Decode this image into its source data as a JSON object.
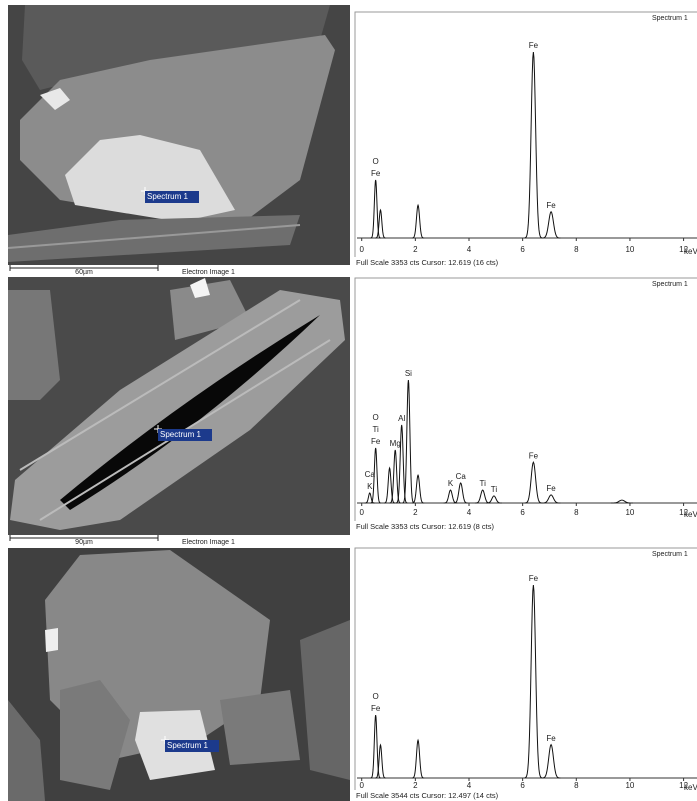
{
  "panels": [
    {
      "image": {
        "spectrum_label": "Spectrum 1",
        "scale_bar": "60µm",
        "caption": "Electron Image 1"
      },
      "spectrum": {
        "title": "Spectrum 1",
        "x_label": "keV",
        "xlim": [
          -0.25,
          12.5
        ],
        "xticks": [
          0,
          2,
          4,
          6,
          8,
          10,
          12
        ],
        "ylim": [
          0,
          3353
        ],
        "footer": "Full Scale 3353 cts Cursor: 12.619 (16 cts)",
        "peaks": {
          "x": [
            0.52,
            0.7,
            2.1,
            6.4,
            7.06
          ],
          "counts": [
            884,
            427,
            500,
            2835,
            400
          ],
          "labels": [
            [
              "O",
              "Fe"
            ],
            null,
            null,
            [
              "Fe"
            ],
            [
              "Fe"
            ]
          ]
        }
      }
    },
    {
      "image": {
        "spectrum_label": "Spectrum 1",
        "scale_bar": "90µm",
        "caption": "Electron Image 1"
      },
      "spectrum": {
        "title": "Spectrum 1",
        "x_label": "keV",
        "xlim": [
          -0.25,
          12.5
        ],
        "xticks": [
          0,
          2,
          4,
          6,
          8,
          10,
          12
        ],
        "ylim": [
          0,
          3353
        ],
        "footer": "Full Scale 3353 cts Cursor: 12.619 (8 cts)",
        "peaks": {
          "x": [
            0.3,
            0.52,
            1.04,
            1.25,
            1.49,
            1.74,
            2.1,
            3.31,
            3.69,
            4.51,
            4.93,
            6.4,
            7.06,
            9.7
          ],
          "counts": [
            155,
            850,
            540,
            820,
            1205,
            1900,
            430,
            200,
            310,
            200,
            110,
            630,
            125,
            45
          ],
          "labels": [
            [
              "Ca",
              "K"
            ],
            [
              "O",
              "Ti",
              "Fe"
            ],
            null,
            [
              "Mg"
            ],
            [
              "Al"
            ],
            [
              "Si"
            ],
            null,
            [
              "K"
            ],
            [
              "Ca"
            ],
            [
              "Ti"
            ],
            [
              "Ti"
            ],
            [
              "Fe"
            ],
            [
              "Fe"
            ],
            null
          ]
        }
      }
    },
    {
      "image": {
        "spectrum_label": "Spectrum 1"
      },
      "spectrum": {
        "title": "Spectrum 1",
        "x_label": "keV",
        "xlim": [
          -0.25,
          12.5
        ],
        "xticks": [
          0,
          2,
          4,
          6,
          8,
          10,
          12
        ],
        "ylim": [
          0,
          3544
        ],
        "footer": "Full Scale 3544 cts Cursor: 12.497 (14 cts)",
        "peaks": {
          "x": [
            0.52,
            0.7,
            2.1,
            6.4,
            7.06
          ],
          "counts": [
            1000,
            525,
            600,
            3067,
            530
          ],
          "labels": [
            [
              "O",
              "Fe"
            ],
            null,
            null,
            [
              "Fe"
            ],
            [
              "Fe"
            ]
          ]
        }
      }
    }
  ]
}
